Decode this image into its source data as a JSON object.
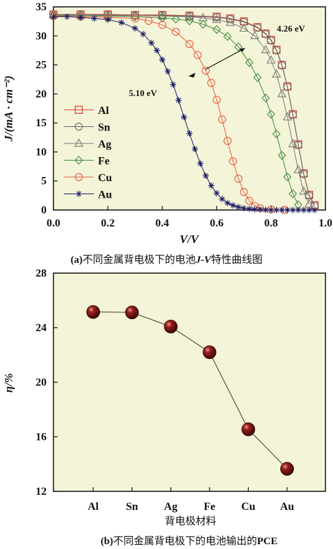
{
  "chart_data": [
    {
      "type": "line",
      "xlabel": "V/V",
      "ylabel": "J/(mA · cm⁻²)",
      "xlim": [
        0.0,
        1.0
      ],
      "ylim": [
        0,
        35
      ],
      "x_ticks": [
        "0.0",
        "0.2",
        "0.4",
        "0.6",
        "0.8",
        "1.0"
      ],
      "y_ticks": [
        "0",
        "5",
        "10",
        "15",
        "20",
        "25",
        "30",
        "35"
      ],
      "legend_placement": "left",
      "series": [
        {
          "name": "Al",
          "color": "#d63a3a",
          "marker": "square",
          "x": [
            0.0,
            0.1,
            0.2,
            0.3,
            0.4,
            0.5,
            0.6,
            0.65,
            0.7,
            0.75,
            0.78,
            0.8,
            0.82,
            0.84,
            0.86,
            0.88,
            0.9,
            0.92,
            0.94,
            0.96
          ],
          "y": [
            33.7,
            33.7,
            33.7,
            33.6,
            33.6,
            33.5,
            33.3,
            33.0,
            32.5,
            31.5,
            30.4,
            29.3,
            27.6,
            25.0,
            21.3,
            16.5,
            11.3,
            6.3,
            2.6,
            0.8
          ]
        },
        {
          "name": "Sn",
          "color": "#666666",
          "marker": "circle",
          "x": [
            0.0,
            0.1,
            0.2,
            0.3,
            0.4,
            0.5,
            0.6,
            0.65,
            0.7,
            0.75,
            0.78,
            0.8,
            0.82,
            0.84,
            0.86,
            0.88,
            0.9,
            0.92,
            0.94,
            0.96
          ],
          "y": [
            33.6,
            33.6,
            33.6,
            33.5,
            33.5,
            33.4,
            33.2,
            32.9,
            32.4,
            31.4,
            30.3,
            29.2,
            27.5,
            24.9,
            21.2,
            16.4,
            11.2,
            6.2,
            2.5,
            0.7
          ]
        },
        {
          "name": "Ag",
          "color": "#777777",
          "marker": "triangle",
          "x": [
            0.0,
            0.1,
            0.2,
            0.3,
            0.4,
            0.5,
            0.55,
            0.6,
            0.65,
            0.7,
            0.74,
            0.78,
            0.8,
            0.82,
            0.84,
            0.86,
            0.88,
            0.9,
            0.92,
            0.94
          ],
          "y": [
            33.6,
            33.6,
            33.5,
            33.5,
            33.4,
            33.3,
            33.1,
            32.8,
            32.3,
            31.3,
            30.0,
            27.6,
            25.8,
            23.4,
            20.0,
            16.0,
            11.4,
            6.9,
            3.2,
            1.0
          ]
        },
        {
          "name": "Fe",
          "color": "#3f8a3f",
          "marker": "diamond",
          "x": [
            0.0,
            0.1,
            0.2,
            0.3,
            0.4,
            0.45,
            0.5,
            0.55,
            0.6,
            0.64,
            0.68,
            0.72,
            0.75,
            0.78,
            0.8,
            0.82,
            0.84,
            0.86,
            0.88,
            0.9
          ],
          "y": [
            33.5,
            33.5,
            33.4,
            33.3,
            33.1,
            32.9,
            32.6,
            32.0,
            31.1,
            29.9,
            28.1,
            25.4,
            22.8,
            19.3,
            16.5,
            13.1,
            9.4,
            5.7,
            2.8,
            0.9
          ]
        },
        {
          "name": "Cu",
          "color": "#e85a3a",
          "marker": "circle",
          "x": [
            0.0,
            0.1,
            0.2,
            0.3,
            0.35,
            0.4,
            0.45,
            0.5,
            0.53,
            0.56,
            0.58,
            0.6,
            0.62,
            0.64,
            0.66,
            0.68,
            0.7,
            0.72,
            0.74,
            0.76,
            0.8,
            0.85
          ],
          "y": [
            33.4,
            33.3,
            33.2,
            33.0,
            32.6,
            31.9,
            30.7,
            28.6,
            26.7,
            24.0,
            21.9,
            19.0,
            15.6,
            11.9,
            8.4,
            5.4,
            3.1,
            1.6,
            0.7,
            0.3,
            0.1,
            0.0
          ]
        },
        {
          "name": "Au",
          "color": "#1a1a66",
          "marker": "asterisk",
          "x": [
            0.0,
            0.05,
            0.1,
            0.15,
            0.2,
            0.25,
            0.3,
            0.33,
            0.36,
            0.38,
            0.4,
            0.42,
            0.44,
            0.46,
            0.48,
            0.5,
            0.52,
            0.54,
            0.56,
            0.58,
            0.6,
            0.62,
            0.64,
            0.66,
            0.68,
            0.7,
            0.72,
            0.74,
            0.76,
            0.78,
            0.8,
            0.82,
            0.84,
            0.86,
            0.88,
            0.9,
            0.92,
            0.94,
            0.96
          ],
          "y": [
            33.3,
            33.3,
            33.2,
            33.0,
            32.8,
            32.3,
            31.3,
            30.3,
            28.8,
            27.5,
            25.9,
            23.9,
            21.6,
            18.9,
            16.0,
            13.2,
            10.5,
            8.0,
            5.9,
            4.2,
            2.9,
            1.9,
            1.2,
            0.8,
            0.5,
            0.3,
            0.2,
            0.1,
            0.1,
            0.0,
            0.0,
            0.0,
            0.0,
            0.0,
            0.0,
            0.0,
            0.0,
            0.0,
            0.0
          ]
        }
      ],
      "annotations": [
        "4.26 eV",
        "5.10 eV"
      ],
      "caption": {
        "label": "(a)",
        "text1": "不同金属背电极下的电池",
        "text2": "J-V",
        "text3": "特性曲线图"
      }
    },
    {
      "type": "line",
      "xlabel": "背电极材料",
      "ylabel": "η/%",
      "categories": [
        "Al",
        "Sn",
        "Ag",
        "Fe",
        "Cu",
        "Au"
      ],
      "values": [
        25.15,
        25.12,
        24.08,
        22.2,
        16.55,
        13.65
      ],
      "ylim": [
        12,
        28
      ],
      "y_ticks": [
        "12",
        "16",
        "20",
        "24",
        "28"
      ],
      "marker_color": "#7a1010",
      "caption": {
        "label": "(b)",
        "text1": "不同金属背电极下的电池输出的",
        "text2": "PCE"
      }
    }
  ],
  "colors": {
    "plot_background": "#f4f4d8",
    "axis": "#111111"
  }
}
